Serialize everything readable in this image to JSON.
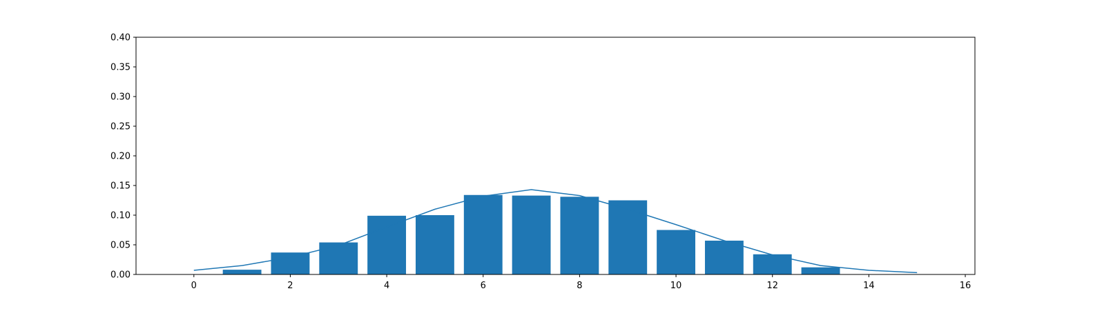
{
  "chart_data": {
    "type": "bar",
    "title": "",
    "xlabel": "",
    "ylabel": "",
    "xlim": [
      -1.2,
      16.2
    ],
    "ylim": [
      0.0,
      0.4
    ],
    "grid": false,
    "legend": "none",
    "xticks": [
      "0",
      "2",
      "4",
      "6",
      "8",
      "10",
      "12",
      "14",
      "16"
    ],
    "yticks": [
      "0.00",
      "0.05",
      "0.10",
      "0.15",
      "0.20",
      "0.25",
      "0.30",
      "0.35",
      "0.40"
    ],
    "bars": {
      "color": "#1f77b4",
      "x": [
        1,
        2,
        3,
        4,
        5,
        6,
        7,
        8,
        9,
        10,
        11,
        12,
        13
      ],
      "values": [
        0.008,
        0.037,
        0.054,
        0.099,
        0.1,
        0.134,
        0.133,
        0.131,
        0.125,
        0.075,
        0.057,
        0.034,
        0.012
      ]
    },
    "line": {
      "color": "#1f77b4",
      "x": [
        0,
        1,
        2,
        3,
        4,
        5,
        6,
        7,
        8,
        9,
        10,
        11,
        12,
        13,
        14,
        15
      ],
      "values": [
        0.007,
        0.015,
        0.029,
        0.049,
        0.08,
        0.11,
        0.132,
        0.143,
        0.133,
        0.11,
        0.084,
        0.057,
        0.033,
        0.015,
        0.007,
        0.003
      ]
    }
  }
}
